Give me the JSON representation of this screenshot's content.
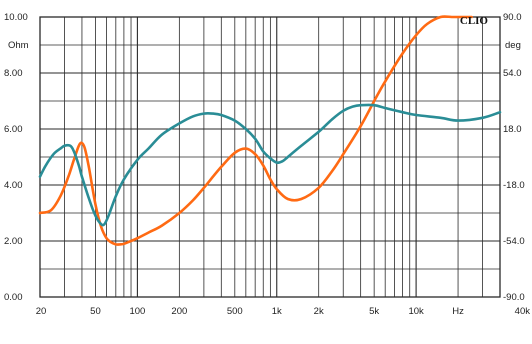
{
  "chart_data": {
    "type": "line",
    "brand": "CLIO",
    "x_scale": "log",
    "xlim": [
      20,
      40000
    ],
    "x_tick_labels": [
      "20",
      "50",
      "100",
      "200",
      "500",
      "1k",
      "2k",
      "5k",
      "10k",
      "Hz",
      "40k"
    ],
    "y_left_unit": "Ohm",
    "ylim_left": [
      0,
      10
    ],
    "y_left_ticks": [
      "10.00",
      "8.00",
      "6.00",
      "4.00",
      "2.00",
      "0.00"
    ],
    "y_right_unit": "deg",
    "ylim_right": [
      -90,
      90
    ],
    "y_right_ticks": [
      "90.0",
      "54.0",
      "18.0",
      "-18.0",
      "-54.0",
      "-90.0"
    ],
    "grid": true,
    "colors": {
      "series_1": "#ff6a13",
      "series_2": "#2a8d96",
      "grid": "#2a2a2a"
    },
    "series": [
      {
        "x": [
          20,
          24,
          28,
          32,
          35,
          38,
          40,
          42,
          45,
          50,
          55,
          60,
          65,
          70,
          75,
          80,
          90,
          100,
          120,
          150,
          200,
          250,
          300,
          400,
          500,
          600,
          700,
          800,
          900,
          1000,
          1200,
          1500,
          2000,
          2500,
          3000,
          4000,
          5000,
          6000,
          8000,
          10000,
          12000,
          15000,
          18000,
          20000,
          25000
        ],
        "y": [
          3.0,
          3.1,
          3.6,
          4.3,
          4.9,
          5.4,
          5.5,
          5.3,
          4.6,
          3.3,
          2.5,
          2.1,
          1.95,
          1.88,
          1.88,
          1.9,
          2.0,
          2.1,
          2.3,
          2.55,
          3.0,
          3.45,
          3.9,
          4.65,
          5.15,
          5.3,
          5.1,
          4.7,
          4.2,
          3.85,
          3.5,
          3.5,
          3.9,
          4.5,
          5.1,
          6.1,
          7.0,
          7.7,
          8.7,
          9.35,
          9.75,
          10.0,
          10.0,
          10.0,
          10.0
        ]
      },
      {
        "x": [
          20,
          22,
          25,
          28,
          30,
          33,
          35,
          38,
          40,
          45,
          50,
          55,
          58,
          62,
          70,
          80,
          100,
          120,
          150,
          200,
          250,
          300,
          350,
          400,
          500,
          600,
          700,
          800,
          900,
          1000,
          1100,
          1200,
          1500,
          2000,
          2500,
          3000,
          3500,
          4000,
          5000,
          6000,
          8000,
          10000,
          15000,
          20000,
          30000,
          40000
        ],
        "y": [
          4.3,
          4.7,
          5.1,
          5.3,
          5.4,
          5.4,
          5.2,
          4.7,
          4.3,
          3.5,
          2.9,
          2.6,
          2.6,
          2.9,
          3.6,
          4.2,
          4.9,
          5.3,
          5.8,
          6.2,
          6.45,
          6.55,
          6.55,
          6.5,
          6.3,
          6.0,
          5.65,
          5.2,
          4.95,
          4.8,
          4.85,
          5.0,
          5.4,
          5.9,
          6.35,
          6.65,
          6.8,
          6.85,
          6.85,
          6.75,
          6.6,
          6.5,
          6.4,
          6.3,
          6.4,
          6.6
        ]
      }
    ]
  }
}
